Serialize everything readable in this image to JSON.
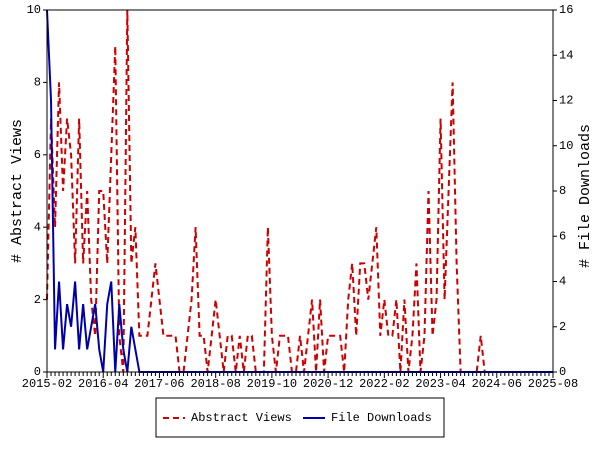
{
  "chart_data": {
    "type": "line",
    "y_label": "# Abstract Views",
    "y2_label": "# File Downloads",
    "categories": [
      "2015-02",
      null,
      null,
      null,
      null,
      null,
      null,
      null,
      null,
      null,
      null,
      null,
      null,
      null,
      "2016-04",
      null,
      null,
      null,
      null,
      null,
      null,
      null,
      null,
      null,
      null,
      null,
      null,
      null,
      "2017-06",
      null,
      null,
      null,
      null,
      null,
      null,
      null,
      null,
      null,
      null,
      null,
      null,
      null,
      "2018-08",
      null,
      null,
      null,
      null,
      null,
      null,
      null,
      null,
      null,
      null,
      null,
      null,
      null,
      "2019-10",
      null,
      null,
      null,
      null,
      null,
      null,
      null,
      null,
      null,
      null,
      null,
      null,
      null,
      "2020-12",
      null,
      null,
      null,
      null,
      null,
      null,
      null,
      null,
      null,
      null,
      null,
      null,
      null,
      "2022-02",
      null,
      null,
      null,
      null,
      null,
      null,
      null,
      null,
      null,
      null,
      null,
      null,
      null,
      "2023-04",
      null,
      null,
      null,
      null,
      null,
      null,
      null,
      null,
      null,
      null,
      null,
      null,
      null,
      "2024-06",
      null,
      null,
      null,
      null,
      null,
      null,
      null,
      null,
      null,
      null,
      null,
      null,
      null,
      "2025-08"
    ],
    "series": [
      {
        "name": "Abstract Views",
        "color": "#cc0000",
        "style": "dashed",
        "axis": "y",
        "values": [
          2,
          7,
          4,
          8,
          5,
          7,
          6,
          3,
          7,
          3,
          5,
          2,
          1,
          5,
          5,
          3,
          6,
          9,
          1,
          0,
          10,
          3,
          4,
          1,
          1,
          1,
          2,
          3,
          2,
          1,
          1,
          1,
          1,
          0,
          0,
          1,
          2,
          4,
          1,
          1,
          0,
          1,
          2,
          1,
          0,
          1,
          1,
          0,
          1,
          0,
          1,
          1,
          0,
          0,
          0,
          4,
          1,
          0,
          1,
          1,
          1,
          0,
          0,
          1,
          0,
          1,
          2,
          0,
          2,
          0,
          1,
          1,
          1,
          1,
          0,
          2,
          3,
          1,
          3,
          3,
          2,
          3,
          4,
          1,
          2,
          1,
          1,
          2,
          0,
          2,
          0,
          1,
          3,
          0,
          1,
          5,
          1,
          2,
          7,
          2,
          5,
          8,
          3,
          0,
          0,
          0,
          0,
          0,
          1,
          0,
          0,
          0,
          0,
          0,
          0,
          0,
          0,
          0,
          0,
          0,
          0,
          0,
          0,
          0,
          0,
          0,
          0
        ]
      },
      {
        "name": "File Downloads",
        "color": "#0000aa",
        "style": "solid",
        "axis": "y2",
        "values": [
          16,
          12,
          1,
          4,
          1,
          3,
          2,
          4,
          1,
          3,
          1,
          2,
          3,
          1,
          0,
          3,
          4,
          0,
          3,
          1,
          0,
          2,
          1,
          0,
          0,
          0,
          0,
          0,
          0,
          0,
          0,
          0,
          0,
          0,
          0,
          0,
          0,
          0,
          0,
          0,
          0,
          0,
          0,
          0,
          0,
          0,
          0,
          0,
          0,
          0,
          0,
          0,
          0,
          0,
          0,
          0,
          0,
          0,
          0,
          0,
          0,
          0,
          0,
          0,
          0,
          0,
          0,
          0,
          0,
          0,
          0,
          0,
          0,
          0,
          0,
          0,
          0,
          0,
          0,
          0,
          0,
          0,
          0,
          0,
          0,
          0,
          0,
          0,
          0,
          0,
          0,
          0,
          0,
          0,
          0,
          0,
          0,
          0,
          0,
          0,
          0,
          0,
          0,
          0,
          0,
          0,
          0,
          0,
          0,
          0,
          0,
          0,
          0,
          0,
          0,
          0,
          0,
          0,
          0,
          0,
          0,
          0,
          0,
          0,
          0,
          0,
          0
        ]
      }
    ],
    "ylim": [
      0,
      10
    ],
    "yticks": [
      0,
      2,
      4,
      6,
      8,
      10
    ],
    "y2lim": [
      0,
      16
    ],
    "y2ticks": [
      0,
      2,
      4,
      6,
      8,
      10,
      12,
      14,
      16
    ],
    "legend": "bottom"
  }
}
